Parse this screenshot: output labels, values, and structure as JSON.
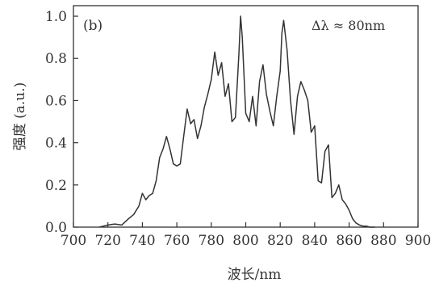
{
  "chart_data": {
    "type": "line",
    "panel_label": "(b)",
    "annotation": "Δλ ≈ 80nm",
    "xlabel": "波长/nm",
    "ylabel": "强度 (a.u.)",
    "xlim": [
      700,
      900
    ],
    "ylim": [
      0,
      1.05
    ],
    "x_ticks": [
      700,
      720,
      740,
      760,
      780,
      800,
      820,
      840,
      860,
      880,
      900
    ],
    "x_tick_labels": [
      "700",
      "720",
      "740",
      "760",
      "780",
      "800",
      "820",
      "840",
      "860",
      "880",
      "900"
    ],
    "y_ticks": [
      0,
      0.2,
      0.4,
      0.6,
      0.8,
      1.0
    ],
    "y_tick_labels": [
      "0.0",
      "0.2",
      "0.4",
      "0.6",
      "0.8",
      "1.0"
    ],
    "grid": false,
    "legend": false,
    "line_color": "#333333",
    "series": [
      {
        "x": [
          715,
          720,
          724,
          728,
          732,
          735,
          738,
          740,
          742,
          744,
          746,
          748,
          750,
          752,
          754,
          756,
          758,
          760,
          762,
          764,
          766,
          768,
          770,
          772,
          774,
          776,
          778,
          780,
          782,
          784,
          786,
          788,
          790,
          792,
          794,
          796,
          797,
          798,
          800,
          802,
          804,
          806,
          808,
          810,
          812,
          814,
          816,
          818,
          820,
          821,
          822,
          824,
          826,
          828,
          830,
          832,
          834,
          836,
          838,
          840,
          842,
          844,
          846,
          848,
          850,
          852,
          854,
          856,
          858,
          860,
          862,
          864,
          866,
          868,
          870,
          872,
          875
        ],
        "y": [
          0.0,
          0.01,
          0.015,
          0.01,
          0.04,
          0.06,
          0.1,
          0.16,
          0.13,
          0.15,
          0.16,
          0.22,
          0.33,
          0.37,
          0.43,
          0.37,
          0.3,
          0.29,
          0.3,
          0.43,
          0.56,
          0.49,
          0.51,
          0.42,
          0.48,
          0.57,
          0.63,
          0.7,
          0.83,
          0.72,
          0.78,
          0.62,
          0.68,
          0.5,
          0.52,
          0.82,
          1.0,
          0.9,
          0.54,
          0.5,
          0.62,
          0.48,
          0.69,
          0.77,
          0.63,
          0.55,
          0.48,
          0.62,
          0.74,
          0.92,
          0.98,
          0.84,
          0.6,
          0.44,
          0.62,
          0.69,
          0.65,
          0.6,
          0.45,
          0.48,
          0.22,
          0.21,
          0.36,
          0.39,
          0.14,
          0.16,
          0.2,
          0.13,
          0.11,
          0.08,
          0.04,
          0.02,
          0.01,
          0.005,
          0.005,
          0.0,
          0.0
        ]
      }
    ]
  }
}
